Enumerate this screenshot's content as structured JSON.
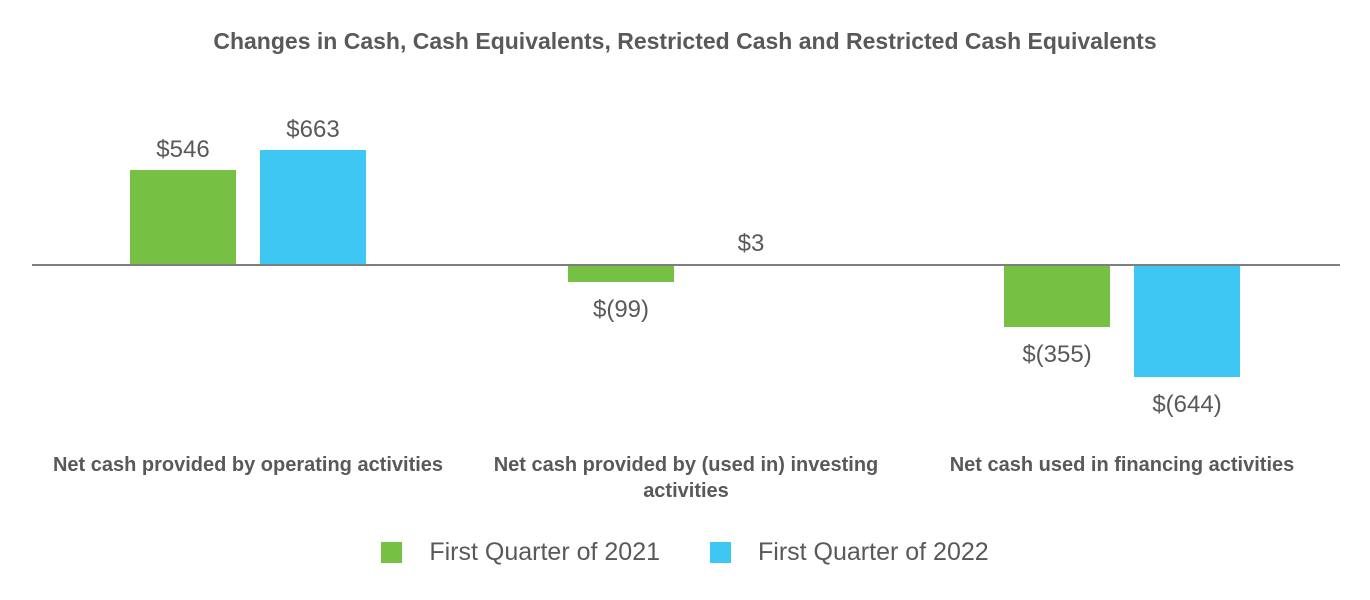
{
  "chart_data": {
    "type": "bar",
    "title": "Changes in Cash, Cash Equivalents, Restricted Cash and Restricted Cash Equivalents",
    "categories": [
      "Net cash provided by operating activities",
      "Net cash provided by (used in) investing activities",
      "Net cash used in financing activities"
    ],
    "series": [
      {
        "name": "First Quarter of 2021",
        "color": "#76C143",
        "values": [
          546,
          -99,
          -355
        ],
        "labels": [
          "$546",
          "$(99)",
          "$(355)"
        ]
      },
      {
        "name": "First Quarter of 2022",
        "color": "#3EC7F3",
        "values": [
          663,
          3,
          -644
        ],
        "labels": [
          "$663",
          "$3",
          "$(644)"
        ]
      }
    ],
    "unit": "USD millions",
    "value_label_format": "accounting",
    "ylim": [
      -700,
      700
    ],
    "grid": false,
    "y_axis_visible": false,
    "zero_line": true,
    "legend_position": "bottom"
  },
  "colors": {
    "series_2021": "#76C143",
    "series_2022": "#3EC7F3",
    "text": "#595959",
    "axis_line": "#7F7F7F",
    "background": "#FFFFFF"
  }
}
